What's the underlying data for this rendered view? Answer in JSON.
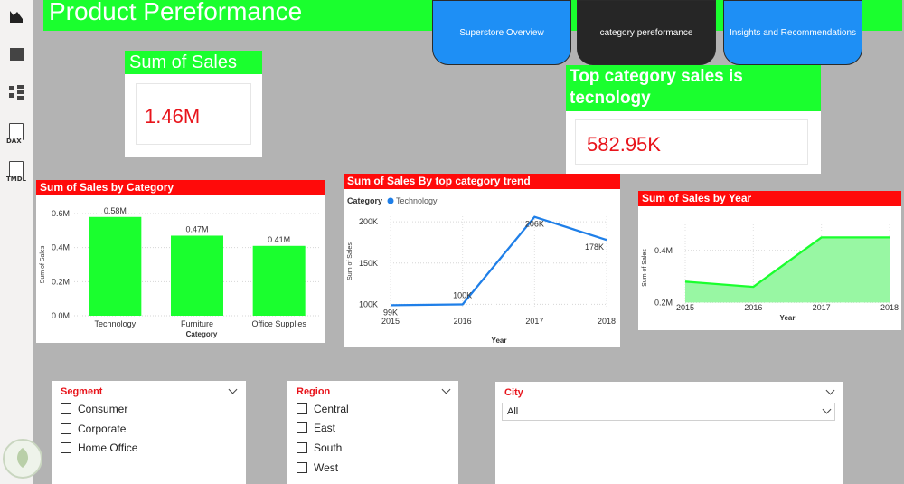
{
  "page": {
    "title": "Product Pereformance"
  },
  "nav": {
    "buttons": [
      {
        "label": "Superstore Overview"
      },
      {
        "label": "category pereformance"
      },
      {
        "label": "Insights and Recommendations"
      }
    ]
  },
  "rail": {
    "items": [
      {
        "label": "DAX"
      },
      {
        "label": "TMDL"
      }
    ]
  },
  "kpi_sales": {
    "title": "Sum of Sales",
    "value": "1.46M"
  },
  "kpi_top": {
    "title": "Top category sales is tecnology",
    "value": "582.95K"
  },
  "chart_data": [
    {
      "id": "category",
      "type": "bar",
      "title": "Sum of Sales by Category",
      "xlabel": "Category",
      "ylabel": "Sum of Sales",
      "categories": [
        "Technology",
        "Furniture",
        "Office Supplies"
      ],
      "values": [
        0.58,
        0.47,
        0.41
      ],
      "data_labels": [
        "0.58M",
        "0.47M",
        "0.41M"
      ],
      "ylim": [
        0,
        0.6
      ],
      "yticks": [
        0,
        0.2,
        0.4,
        0.6
      ],
      "ytick_labels": [
        "0.0M",
        "0.2M",
        "0.4M",
        "0.6M"
      ],
      "color": "#1aff2e",
      "grid": true
    },
    {
      "id": "trend",
      "type": "line",
      "title": "Sum of Sales By top category trend",
      "xlabel": "Year",
      "ylabel": "Sum of Sales",
      "legend_title": "Category",
      "series": [
        {
          "name": "Technology",
          "values": [
            99,
            100,
            206,
            178
          ],
          "color": "#1f7fe8"
        }
      ],
      "x": [
        2015,
        2016,
        2017,
        2018
      ],
      "data_labels": [
        "99K",
        "100K",
        "206K",
        "178K"
      ],
      "ylim": [
        95,
        210
      ],
      "yticks": [
        100,
        150,
        200
      ],
      "ytick_labels": [
        "100K",
        "150K",
        "200K"
      ],
      "grid": true
    },
    {
      "id": "year",
      "type": "area",
      "title": "Sum of Sales by Year",
      "xlabel": "Year",
      "ylabel": "Sum of Sales",
      "x": [
        2015,
        2016,
        2017,
        2018
      ],
      "values": [
        0.28,
        0.26,
        0.45,
        0.45
      ],
      "ylim": [
        0.17,
        0.5
      ],
      "yticks": [
        0.2,
        0.4
      ],
      "ytick_labels": [
        "0.2M",
        "0.4M"
      ],
      "color": "#1aff2e",
      "fill": "#98f7a3",
      "grid": true
    }
  ],
  "slicers": {
    "segment": {
      "title": "Segment",
      "options": [
        "Consumer",
        "Corporate",
        "Home Office"
      ]
    },
    "region": {
      "title": "Region",
      "options": [
        "Central",
        "East",
        "South",
        "West"
      ]
    },
    "city": {
      "title": "City",
      "selected": "All"
    }
  }
}
